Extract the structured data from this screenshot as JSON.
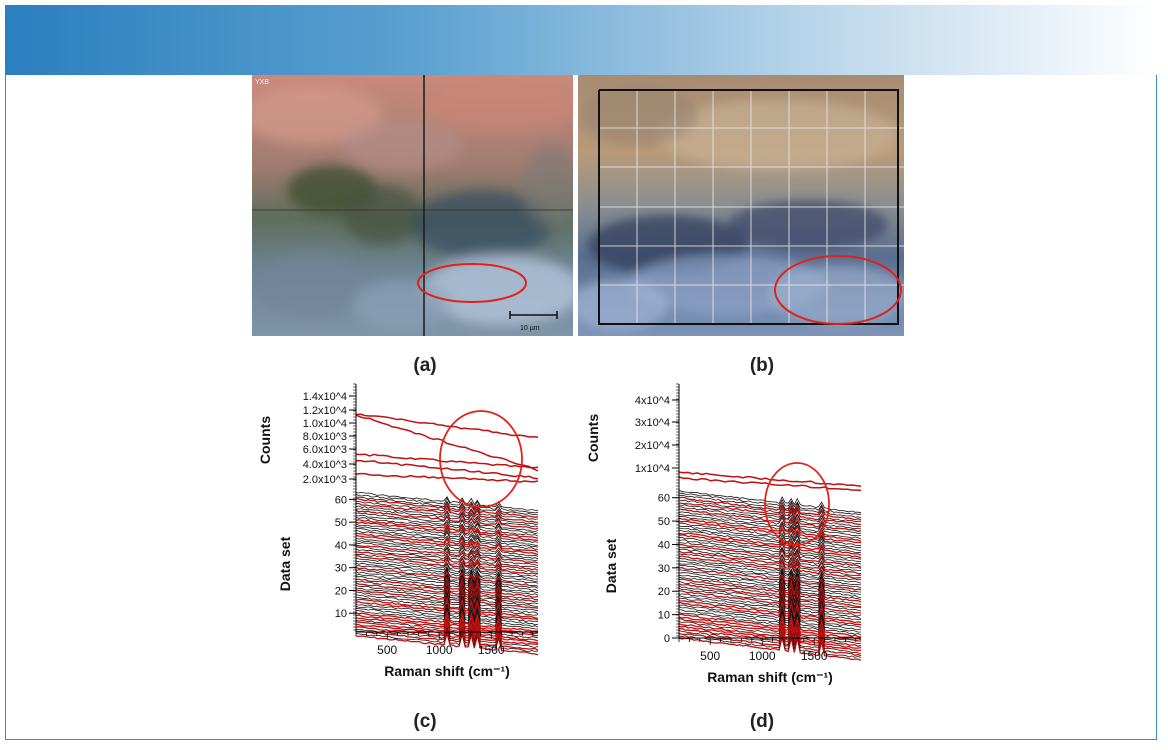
{
  "panel_labels": {
    "a": "(a)",
    "b": "(b)",
    "c": "(c)",
    "d": "(d)"
  },
  "photo_a": {
    "corner_text": "YXB",
    "scalebar_text": "10 µm",
    "description_colors": [
      "#c98a7c",
      "#6f8a78",
      "#8fa8c8"
    ]
  },
  "colors": {
    "header_start": "#2a7fbf",
    "frame": "#3a8ac6",
    "annotation": "#e0231a",
    "trace_red": "#c01010",
    "trace_black": "#1a1010"
  },
  "chart_data": [
    {
      "type": "line",
      "panel": "c",
      "xlabel": "Raman shift (cm⁻¹)",
      "x_ticks": [
        500,
        1000,
        1500
      ],
      "x_range": [
        200,
        1950
      ],
      "counts_axis": {
        "label": "Counts",
        "ticks": [
          "1.4x10^4",
          "1.2x10^4",
          "1.0x10^4",
          "8.0x10^3",
          "6.0x10^3",
          "4.0x10^3",
          "2.0x10^3"
        ]
      },
      "dataset_axis": {
        "label": "Data set",
        "ticks": [
          10,
          20,
          30,
          40,
          50,
          60
        ],
        "range": [
          0,
          65
        ]
      },
      "n_traces": 64,
      "peak_positions": [
        1080,
        1230,
        1300,
        1360,
        1580
      ],
      "annotation": "circle around upper traces near 1350-1850 cm-1"
    },
    {
      "type": "line",
      "panel": "d",
      "xlabel": "Raman shift (cm⁻¹)",
      "x_ticks": [
        500,
        1000,
        1500
      ],
      "x_range": [
        200,
        1950
      ],
      "counts_axis": {
        "label": "Counts",
        "ticks": [
          "4x10^4",
          "3x10^4",
          "2x10^4",
          "1x10^4"
        ]
      },
      "dataset_axis": {
        "label": "Data set",
        "ticks": [
          0,
          10,
          20,
          30,
          40,
          50,
          60
        ],
        "range": [
          0,
          65
        ]
      },
      "n_traces": 64,
      "peak_positions": [
        1190,
        1290,
        1330,
        1580
      ],
      "annotation": "circle around traces near 1200-1650 cm-1"
    }
  ]
}
